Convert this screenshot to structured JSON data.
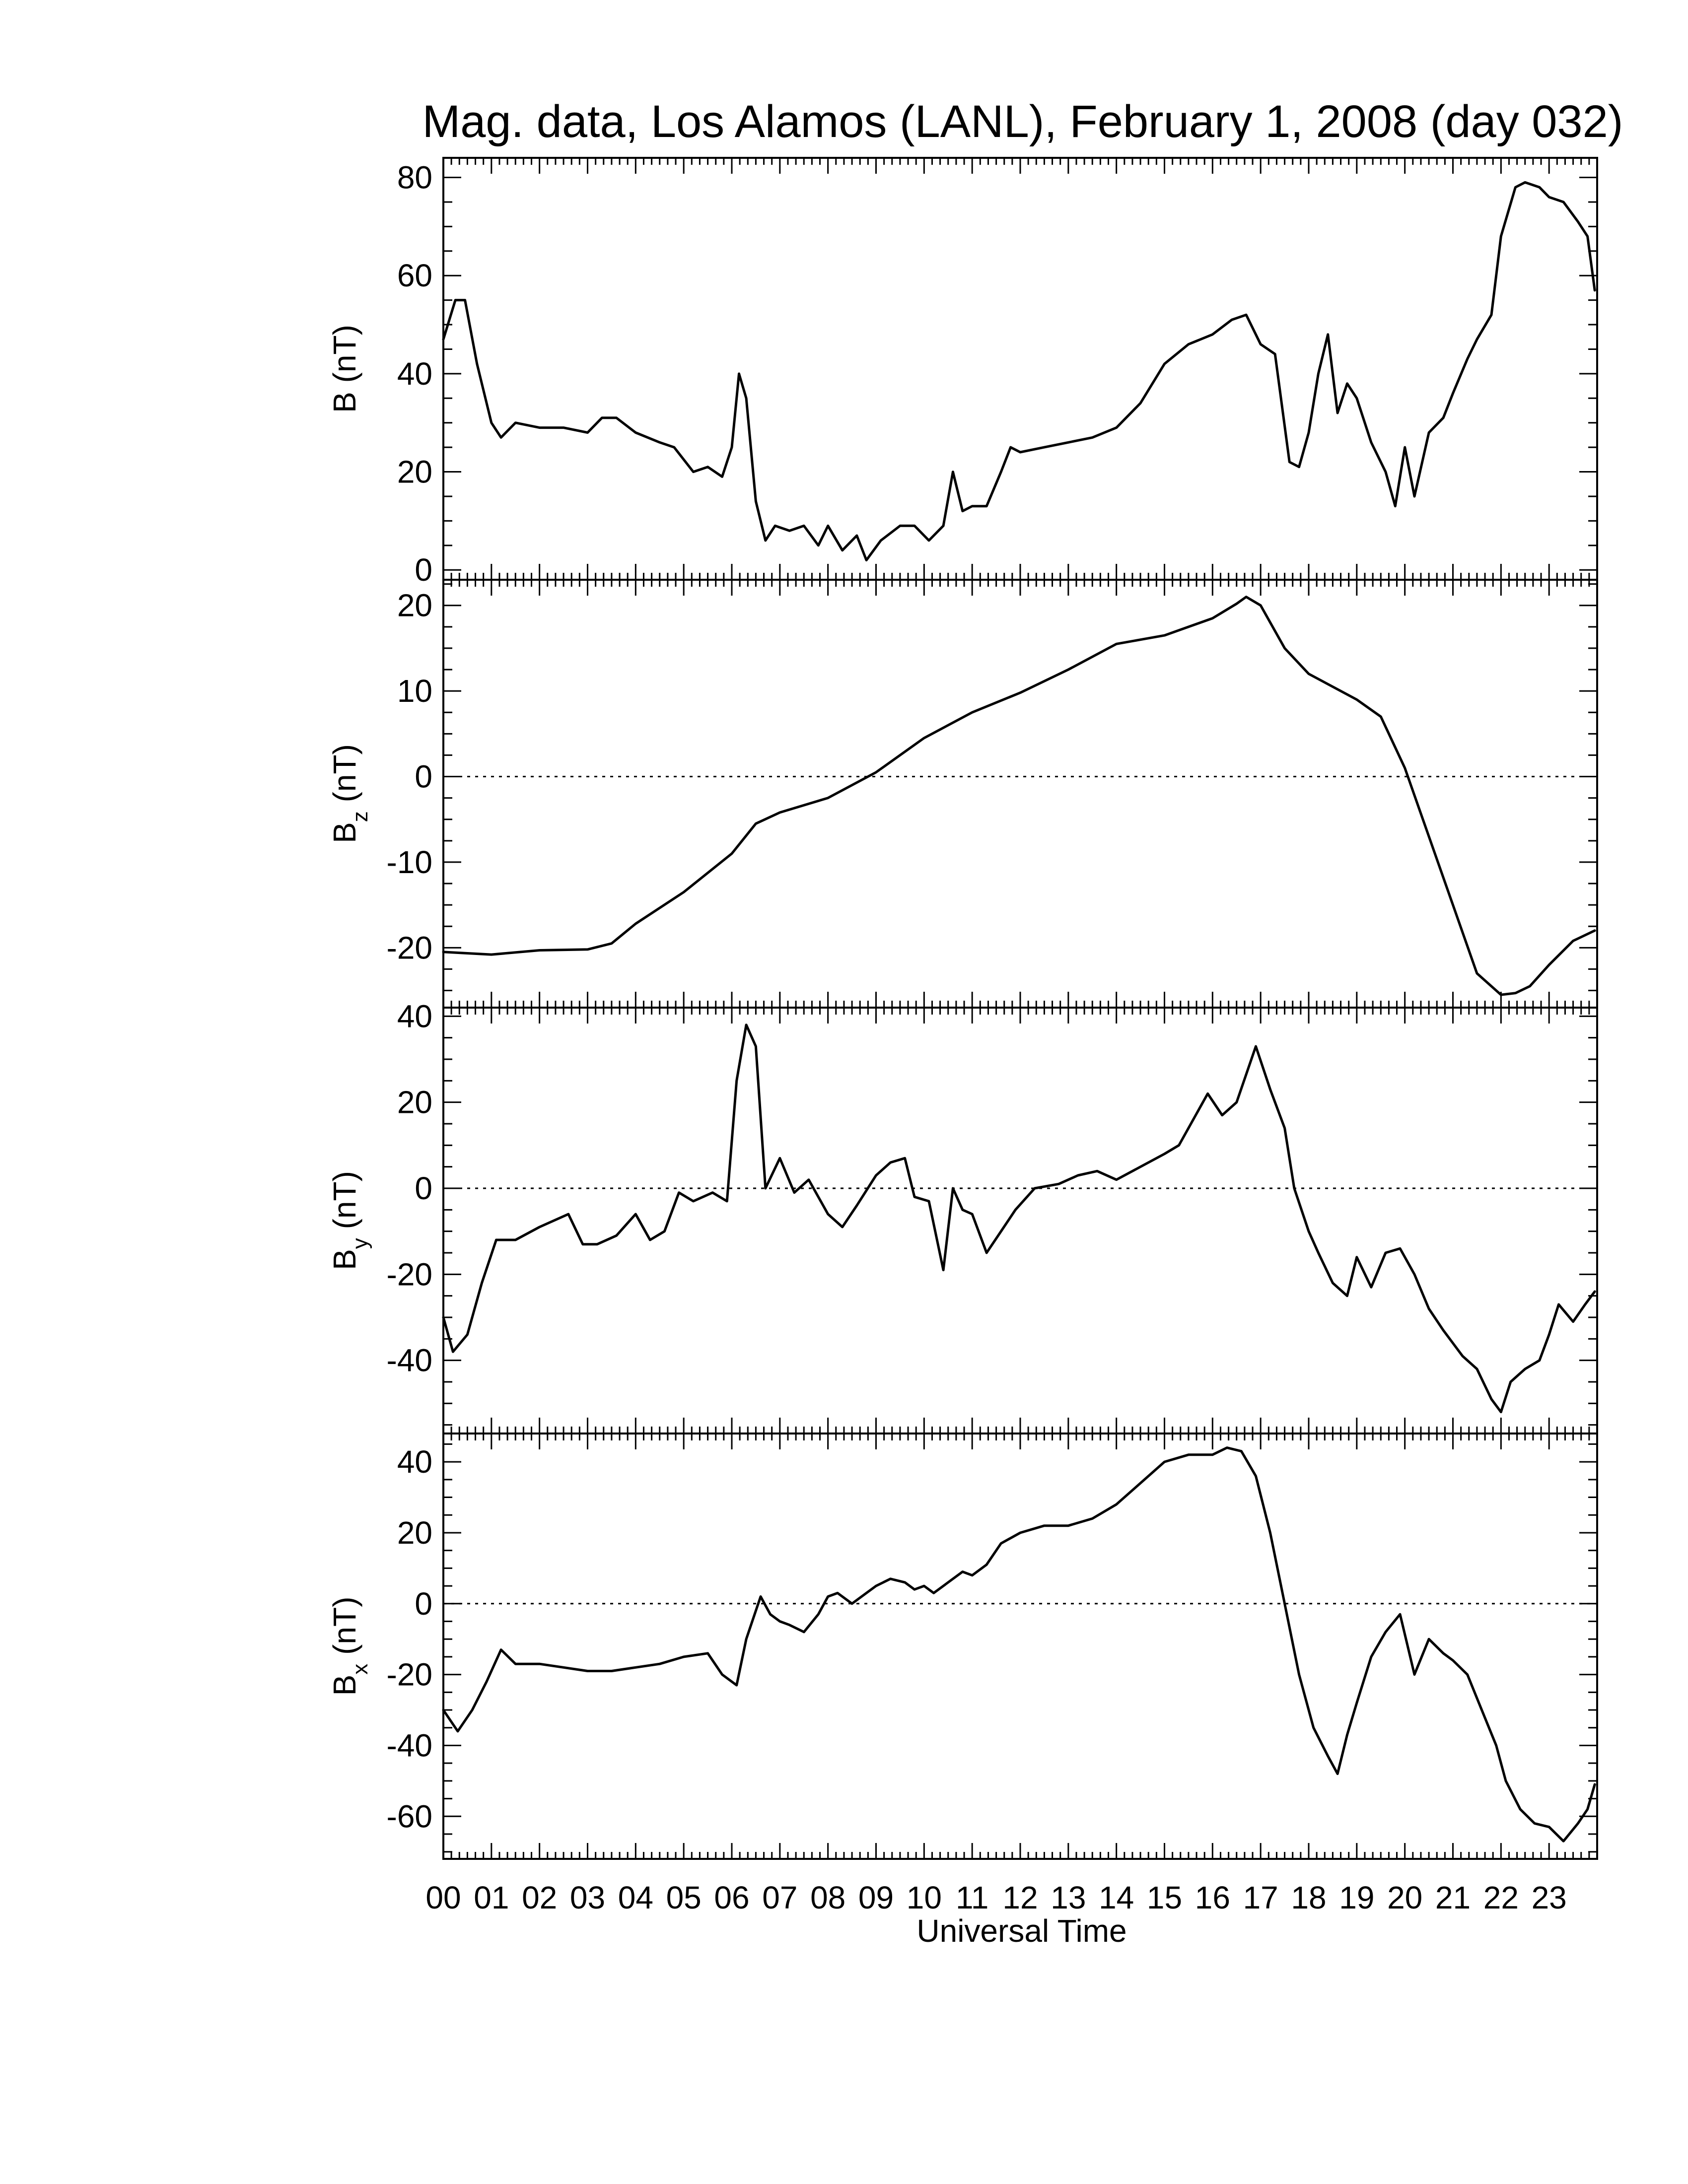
{
  "chart_data": {
    "type": "line",
    "title": "Mag. data, Los Alamos (LANL), February 1, 2008 (day 032)",
    "xlabel": "Universal Time",
    "xlim": [
      0,
      24
    ],
    "x_tick_labels": [
      "00",
      "01",
      "02",
      "03",
      "04",
      "05",
      "06",
      "07",
      "08",
      "09",
      "10",
      "11",
      "12",
      "13",
      "14",
      "15",
      "16",
      "17",
      "18",
      "19",
      "20",
      "21",
      "22",
      "23"
    ],
    "panels": [
      {
        "id": "B",
        "ylabel": "B (nT)",
        "ylabel_main": "B",
        "ylabel_sub": "",
        "ylabel_unit": " (nT)",
        "ylim": [
          -2,
          84
        ],
        "yticks": [
          0,
          20,
          40,
          60,
          80
        ],
        "ytick_labels": [
          "0",
          "20",
          "40",
          "60",
          "80"
        ],
        "zero_line": false,
        "x": [
          0.0,
          0.25,
          0.45,
          0.7,
          1.0,
          1.2,
          1.5,
          2.0,
          2.5,
          3.0,
          3.3,
          3.6,
          4.0,
          4.5,
          4.8,
          5.2,
          5.5,
          5.8,
          6.0,
          6.15,
          6.3,
          6.5,
          6.7,
          6.9,
          7.2,
          7.5,
          7.8,
          8.0,
          8.3,
          8.6,
          8.8,
          9.1,
          9.5,
          9.8,
          10.1,
          10.4,
          10.6,
          10.8,
          11.0,
          11.3,
          11.6,
          11.8,
          12.0,
          12.5,
          13.0,
          13.5,
          14.0,
          14.5,
          15.0,
          15.5,
          16.0,
          16.4,
          16.7,
          17.0,
          17.3,
          17.6,
          17.8,
          18.0,
          18.2,
          18.4,
          18.6,
          18.8,
          19.0,
          19.3,
          19.6,
          19.8,
          20.0,
          20.2,
          20.5,
          20.8,
          21.0,
          21.3,
          21.5,
          21.8,
          22.0,
          22.3,
          22.5,
          22.8,
          23.0,
          23.3,
          23.6,
          23.8,
          23.95
        ],
        "y": [
          47,
          55,
          55,
          42,
          30,
          27,
          30,
          29,
          29,
          28,
          31,
          31,
          28,
          26,
          25,
          20,
          21,
          19,
          25,
          40,
          35,
          14,
          6,
          9,
          8,
          9,
          5,
          9,
          4,
          7,
          2,
          6,
          9,
          9,
          6,
          9,
          20,
          12,
          13,
          13,
          20,
          25,
          24,
          25,
          26,
          27,
          29,
          34,
          42,
          46,
          48,
          51,
          52,
          46,
          44,
          22,
          21,
          28,
          40,
          48,
          32,
          38,
          35,
          26,
          20,
          13,
          25,
          15,
          28,
          31,
          36,
          43,
          47,
          52,
          68,
          78,
          79,
          78,
          76,
          75,
          71,
          68,
          57
        ]
      },
      {
        "id": "Bz",
        "ylabel": "Bz (nT)",
        "ylabel_main": "B",
        "ylabel_sub": "z",
        "ylabel_unit": " (nT)",
        "ylim": [
          -27,
          23
        ],
        "yticks": [
          -20,
          -10,
          0,
          10,
          20
        ],
        "ytick_labels": [
          "-20",
          "-10",
          "0",
          "10",
          "20"
        ],
        "zero_line": true,
        "x": [
          0.0,
          1.0,
          2.0,
          3.0,
          3.5,
          4.0,
          5.0,
          6.0,
          6.5,
          7.0,
          8.0,
          9.0,
          10.0,
          11.0,
          12.0,
          13.0,
          14.0,
          14.5,
          15.0,
          16.0,
          16.5,
          16.7,
          17.0,
          17.5,
          18.0,
          19.0,
          19.5,
          20.0,
          20.5,
          21.0,
          21.5,
          22.0,
          22.3,
          22.6,
          23.0,
          23.5,
          23.95
        ],
        "y": [
          -20.5,
          -20.8,
          -20.3,
          -20.2,
          -19.5,
          -17.2,
          -13.5,
          -9,
          -5.5,
          -4.2,
          -2.5,
          0.5,
          4.5,
          7.5,
          9.8,
          12.5,
          15.5,
          16,
          16.5,
          18.5,
          20.2,
          21,
          20,
          15,
          12,
          9,
          7,
          1,
          -7,
          -15,
          -23,
          -25.5,
          -25.3,
          -24.5,
          -22,
          -19.2,
          -18
        ]
      },
      {
        "id": "By",
        "ylabel": "By (nT)",
        "ylabel_main": "B",
        "ylabel_sub": "y",
        "ylabel_unit": " (nT)",
        "ylim": [
          -57,
          42
        ],
        "yticks": [
          -40,
          -20,
          0,
          20,
          40
        ],
        "ytick_labels": [
          "-40",
          "-20",
          "0",
          "20",
          "40"
        ],
        "zero_line": true,
        "x": [
          0.0,
          0.2,
          0.5,
          0.8,
          1.1,
          1.5,
          2.0,
          2.6,
          2.9,
          3.2,
          3.6,
          4.0,
          4.3,
          4.6,
          4.9,
          5.2,
          5.6,
          5.9,
          6.1,
          6.3,
          6.5,
          6.7,
          7.0,
          7.3,
          7.6,
          8.0,
          8.3,
          8.6,
          9.0,
          9.3,
          9.6,
          9.8,
          10.1,
          10.4,
          10.6,
          10.8,
          11.0,
          11.3,
          11.6,
          11.9,
          12.3,
          12.8,
          13.2,
          13.6,
          14.0,
          14.5,
          15.0,
          15.3,
          15.6,
          15.9,
          16.2,
          16.5,
          16.9,
          17.2,
          17.5,
          17.7,
          18.0,
          18.2,
          18.5,
          18.8,
          19.0,
          19.3,
          19.6,
          19.9,
          20.2,
          20.5,
          20.8,
          21.2,
          21.5,
          21.8,
          22.0,
          22.2,
          22.5,
          22.8,
          23.0,
          23.2,
          23.5,
          23.75,
          23.95
        ],
        "y": [
          -30,
          -38,
          -34,
          -22,
          -12,
          -12,
          -9,
          -6,
          -13,
          -13,
          -11,
          -6,
          -12,
          -10,
          -1,
          -3,
          -1,
          -3,
          25,
          38,
          33,
          0,
          7,
          -1,
          2,
          -6,
          -9,
          -4,
          3,
          6,
          7,
          -2,
          -3,
          -19,
          0,
          -5,
          -6,
          -15,
          -10,
          -5,
          0,
          1,
          3,
          4,
          2,
          5,
          8,
          10,
          16,
          22,
          17,
          20,
          33,
          23,
          14,
          0,
          -10,
          -15,
          -22,
          -25,
          -16,
          -23,
          -15,
          -14,
          -20,
          -28,
          -33,
          -39,
          -42,
          -49,
          -52,
          -45,
          -42,
          -40,
          -34,
          -27,
          -31,
          -27,
          -24
        ]
      },
      {
        "id": "Bx",
        "ylabel": "Bx (nT)",
        "ylabel_main": "B",
        "ylabel_sub": "x",
        "ylabel_unit": " (nT)",
        "ylim": [
          -72,
          48
        ],
        "yticks": [
          -60,
          -40,
          -20,
          0,
          20,
          40
        ],
        "ytick_labels": [
          "-60",
          "-40",
          "-20",
          "0",
          "20",
          "40"
        ],
        "zero_line": true,
        "x": [
          0.0,
          0.3,
          0.6,
          0.9,
          1.2,
          1.5,
          2.0,
          2.5,
          3.0,
          3.5,
          4.0,
          4.5,
          5.0,
          5.5,
          5.8,
          6.1,
          6.3,
          6.5,
          6.6,
          6.8,
          7.0,
          7.2,
          7.5,
          7.8,
          8.0,
          8.2,
          8.5,
          8.8,
          9.0,
          9.3,
          9.6,
          9.8,
          10.0,
          10.2,
          10.5,
          10.8,
          11.0,
          11.3,
          11.6,
          12.0,
          12.5,
          13.0,
          13.5,
          14.0,
          14.5,
          15.0,
          15.5,
          16.0,
          16.3,
          16.6,
          16.9,
          17.2,
          17.5,
          17.8,
          18.1,
          18.4,
          18.6,
          18.8,
          19.0,
          19.3,
          19.6,
          19.9,
          20.2,
          20.5,
          20.8,
          21.0,
          21.3,
          21.6,
          21.9,
          22.1,
          22.4,
          22.7,
          23.0,
          23.3,
          23.6,
          23.8,
          23.95
        ],
        "y": [
          -30,
          -36,
          -30,
          -22,
          -13,
          -17,
          -17,
          -18,
          -19,
          -19,
          -18,
          -17,
          -15,
          -14,
          -20,
          -23,
          -10,
          -2,
          2,
          -3,
          -5,
          -6,
          -8,
          -3,
          2,
          3,
          0,
          3,
          5,
          7,
          6,
          4,
          5,
          3,
          6,
          9,
          8,
          11,
          17,
          20,
          22,
          22,
          24,
          28,
          34,
          40,
          42,
          42,
          44,
          43,
          36,
          20,
          0,
          -20,
          -35,
          -43,
          -48,
          -37,
          -28,
          -15,
          -8,
          -3,
          -20,
          -10,
          -14,
          -16,
          -20,
          -30,
          -40,
          -50,
          -58,
          -62,
          -63,
          -67,
          -62,
          -58,
          -51
        ]
      }
    ]
  }
}
